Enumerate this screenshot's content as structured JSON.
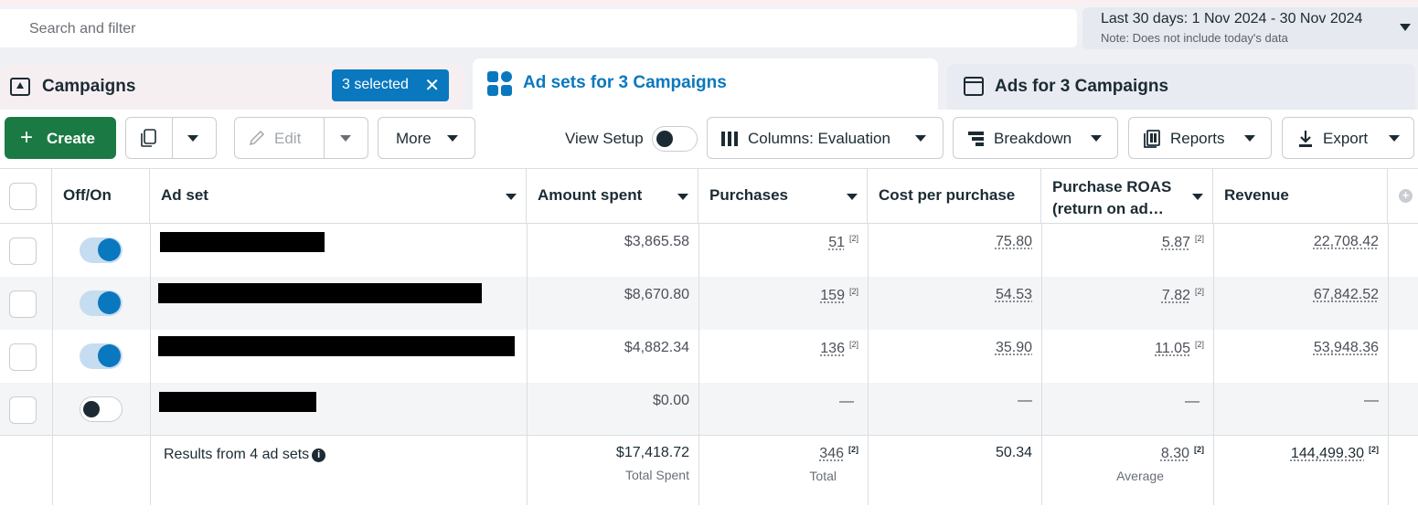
{
  "search": {
    "placeholder": "Search and filter"
  },
  "date_range": {
    "label": "Last 30 days: 1 Nov 2024 - 30 Nov 2024",
    "note": "Note: Does not include today's data"
  },
  "tabs": {
    "campaigns": "Campaigns",
    "selected_count": "3 selected",
    "adsets": "Ad sets for 3 Campaigns",
    "ads": "Ads for 3 Campaigns"
  },
  "toolbar": {
    "create": "Create",
    "edit": "Edit",
    "more": "More",
    "view_setup": "View Setup",
    "columns": "Columns: Evaluation",
    "breakdown": "Breakdown",
    "reports": "Reports",
    "export": "Export"
  },
  "table": {
    "headers": {
      "offon": "Off/On",
      "adset": "Ad set",
      "amount": "Amount spent",
      "purchases": "Purchases",
      "cpp": "Cost per purchase",
      "roas_1": "Purchase ROAS",
      "roas_2": "(return on ad…",
      "revenue": "Revenue"
    },
    "rows": [
      {
        "on": true,
        "amount": "$3,865.58",
        "purchases": "51",
        "purchases_note": "[2]",
        "cpp": "75.80",
        "roas": "5.87",
        "roas_note": "[2]",
        "revenue": "22,708.42"
      },
      {
        "on": true,
        "amount": "$8,670.80",
        "purchases": "159",
        "purchases_note": "[2]",
        "cpp": "54.53",
        "roas": "7.82",
        "roas_note": "[2]",
        "revenue": "67,842.52"
      },
      {
        "on": true,
        "amount": "$4,882.34",
        "purchases": "136",
        "purchases_note": "[2]",
        "cpp": "35.90",
        "roas": "11.05",
        "roas_note": "[2]",
        "revenue": "53,948.36"
      },
      {
        "on": false,
        "amount": "$0.00",
        "purchases": "—",
        "purchases_note": "",
        "cpp": "—",
        "roas": "—",
        "roas_note": "",
        "revenue": "—"
      }
    ],
    "totals": {
      "results": "Results from 4 ad sets",
      "amount": "$17,418.72",
      "amount_sub": "Total Spent",
      "purchases": "346",
      "purchases_note": "[2]",
      "purchases_sub": "Total",
      "cpp": "50.34",
      "roas": "8.30",
      "roas_note": "[2]",
      "roas_sub": "Average",
      "revenue": "144,499.30",
      "revenue_note": "[2]"
    }
  }
}
